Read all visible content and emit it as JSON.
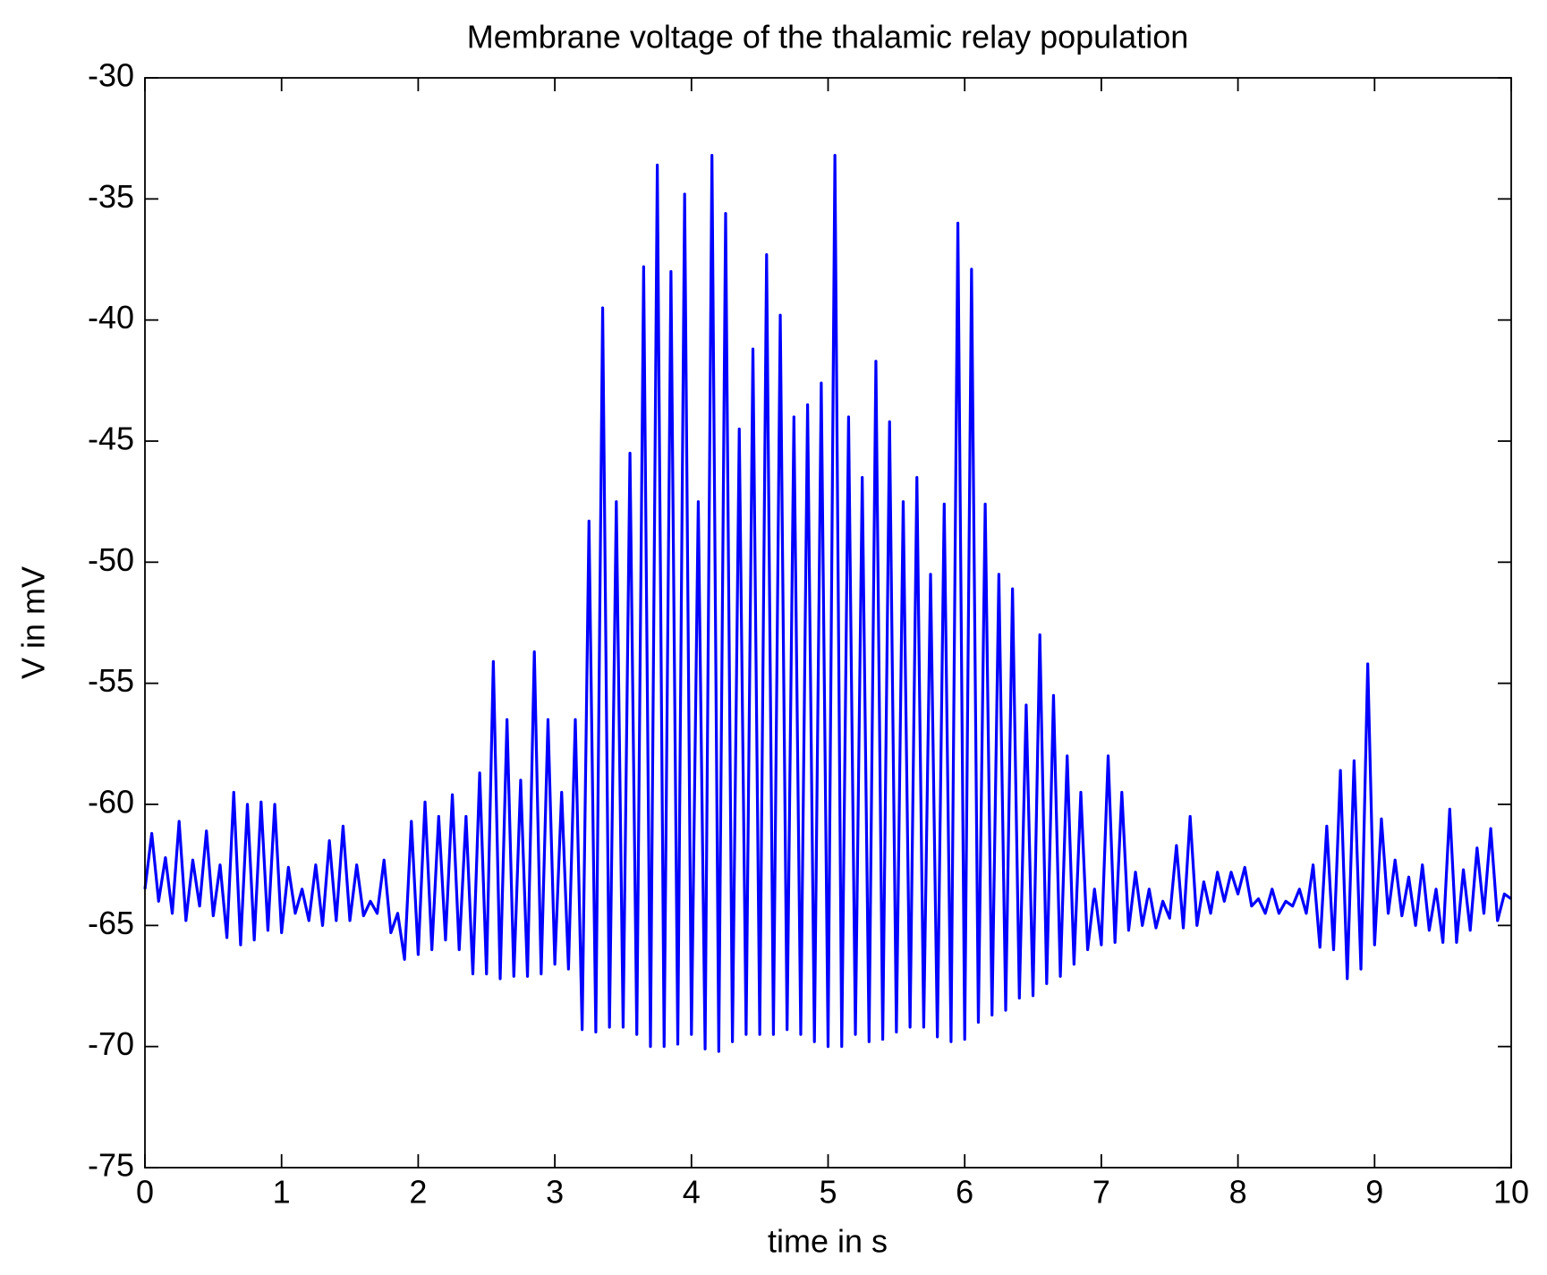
{
  "chart_data": {
    "type": "line",
    "title": "Membrane voltage of the thalamic relay population",
    "xlabel": "time in s",
    "ylabel": "V in mV",
    "color": "#0000ff",
    "xlim": [
      0,
      10
    ],
    "ylim": [
      -75,
      -30
    ],
    "xticks": [
      0,
      1,
      2,
      3,
      4,
      5,
      6,
      7,
      8,
      9,
      10
    ],
    "yticks": [
      -75,
      -70,
      -65,
      -60,
      -55,
      -50,
      -45,
      -40,
      -35,
      -30
    ],
    "x": [
      0,
      0.05,
      0.1,
      0.15,
      0.2,
      0.25,
      0.3,
      0.35,
      0.4,
      0.45,
      0.5,
      0.55,
      0.6,
      0.65,
      0.7,
      0.75,
      0.8,
      0.85,
      0.9,
      0.95,
      1,
      1.05,
      1.1,
      1.15,
      1.2,
      1.25,
      1.3,
      1.35,
      1.4,
      1.45,
      1.5,
      1.55,
      1.6,
      1.65,
      1.7,
      1.75,
      1.8,
      1.85,
      1.9,
      1.95,
      2,
      2.05,
      2.1,
      2.15,
      2.2,
      2.25,
      2.3,
      2.35,
      2.4,
      2.45,
      2.5,
      2.55,
      2.6,
      2.65,
      2.7,
      2.75,
      2.8,
      2.85,
      2.9,
      2.95,
      3,
      3.05,
      3.1,
      3.15,
      3.2,
      3.25,
      3.3,
      3.35,
      3.4,
      3.45,
      3.5,
      3.55,
      3.6,
      3.65,
      3.7,
      3.75,
      3.8,
      3.85,
      3.9,
      3.95,
      4,
      4.05,
      4.1,
      4.15,
      4.2,
      4.25,
      4.3,
      4.35,
      4.4,
      4.45,
      4.5,
      4.55,
      4.6,
      4.65,
      4.7,
      4.75,
      4.8,
      4.85,
      4.9,
      4.95,
      5,
      5.05,
      5.1,
      5.15,
      5.2,
      5.25,
      5.3,
      5.35,
      5.4,
      5.45,
      5.5,
      5.55,
      5.6,
      5.65,
      5.7,
      5.75,
      5.8,
      5.85,
      5.9,
      5.95,
      6,
      6.05,
      6.1,
      6.15,
      6.2,
      6.25,
      6.3,
      6.35,
      6.4,
      6.45,
      6.5,
      6.55,
      6.6,
      6.65,
      6.7,
      6.75,
      6.8,
      6.85,
      6.9,
      6.95,
      7,
      7.05,
      7.1,
      7.15,
      7.2,
      7.25,
      7.3,
      7.35,
      7.4,
      7.45,
      7.5,
      7.55,
      7.6,
      7.65,
      7.7,
      7.75,
      7.8,
      7.85,
      7.9,
      7.95,
      8,
      8.05,
      8.1,
      8.15,
      8.2,
      8.25,
      8.3,
      8.35,
      8.4,
      8.45,
      8.5,
      8.55,
      8.6,
      8.65,
      8.7,
      8.75,
      8.8,
      8.85,
      8.9,
      8.95,
      9,
      9.05,
      9.1,
      9.15,
      9.2,
      9.25,
      9.3,
      9.35,
      9.4,
      9.45,
      9.5,
      9.55,
      9.6,
      9.65,
      9.7,
      9.75,
      9.8,
      9.85,
      9.9,
      9.95,
      10
    ],
    "values": [
      -63.5,
      -61.2,
      -64,
      -62.2,
      -64.5,
      -60.7,
      -64.8,
      -62.3,
      -64.2,
      -61.1,
      -64.6,
      -62.5,
      -65.5,
      -59.5,
      -65.8,
      -60,
      -65.6,
      -59.9,
      -65.2,
      -60,
      -65.3,
      -62.6,
      -64.5,
      -63.5,
      -64.8,
      -62.5,
      -65,
      -61.5,
      -64.8,
      -60.9,
      -64.8,
      -62.5,
      -64.6,
      -64,
      -64.5,
      -62.3,
      -65.3,
      -64.5,
      -66.4,
      -60.7,
      -66.2,
      -59.9,
      -66,
      -60.5,
      -65.6,
      -59.6,
      -66,
      -60.5,
      -67,
      -58.7,
      -67,
      -54.1,
      -67.2,
      -56.5,
      -67.1,
      -59,
      -67.1,
      -53.7,
      -67,
      -56.5,
      -66.6,
      -59.5,
      -66.8,
      -56.5,
      -69.3,
      -48.3,
      -69.4,
      -39.5,
      -69.2,
      -47.5,
      -69.2,
      -45.5,
      -69.5,
      -37.8,
      -70,
      -33.6,
      -70,
      -38,
      -69.9,
      -34.8,
      -69.5,
      -47.5,
      -70.1,
      -33.2,
      -70.2,
      -35.6,
      -69.8,
      -44.5,
      -69.5,
      -41.2,
      -69.5,
      -37.3,
      -69.5,
      -39.8,
      -69.3,
      -44,
      -69.5,
      -43.5,
      -69.8,
      -42.6,
      -70,
      -33.2,
      -70,
      -44,
      -69.5,
      -46.5,
      -69.8,
      -41.7,
      -69.7,
      -44.2,
      -69.4,
      -47.5,
      -69.2,
      -46.5,
      -69.2,
      -50.5,
      -69.6,
      -47.6,
      -69.8,
      -36,
      -69.7,
      -37.9,
      -69,
      -47.6,
      -68.7,
      -50.5,
      -68.5,
      -51.1,
      -68,
      -55.9,
      -67.9,
      -53,
      -67.4,
      -55.5,
      -67.1,
      -58,
      -66.6,
      -59.5,
      -66,
      -63.5,
      -65.8,
      -58,
      -65.7,
      -59.5,
      -65.2,
      -62.8,
      -65,
      -63.5,
      -65.1,
      -64,
      -64.7,
      -61.7,
      -65.1,
      -60.5,
      -65,
      -63.2,
      -64.5,
      -62.8,
      -64,
      -62.8,
      -63.7,
      -62.6,
      -64.2,
      -63.9,
      -64.5,
      -63.5,
      -64.5,
      -64,
      -64.2,
      -63.5,
      -64.5,
      -62.5,
      -65.9,
      -60.9,
      -66,
      -58.6,
      -67.2,
      -58.2,
      -66.8,
      -54.2,
      -65.8,
      -60.6,
      -64.5,
      -62.3,
      -64.6,
      -63,
      -65,
      -62.5,
      -65.2,
      -63.5,
      -65.7,
      -60.2,
      -65.7,
      -62.7,
      -65.2,
      -61.8,
      -64.5,
      -61,
      -64.8,
      -63.7,
      -63.9
    ]
  }
}
